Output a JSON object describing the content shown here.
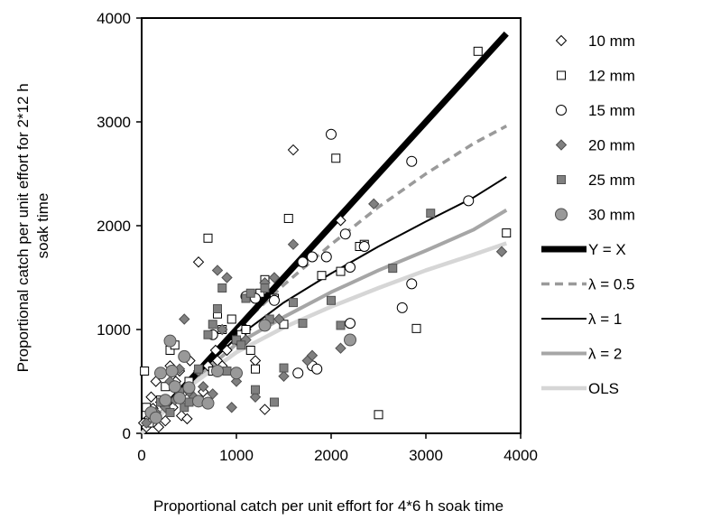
{
  "chart_data": {
    "type": "scatter",
    "xlabel": "Proportional catch per unit effort for 4*6 h soak time",
    "ylabel_lines": [
      "Proportional catch per unit effort for 2*12 h",
      "soak time"
    ],
    "xlim": [
      0,
      4000
    ],
    "ylim": [
      0,
      4000
    ],
    "xticks": [
      "0",
      "1000",
      "2000",
      "3000",
      "4000"
    ],
    "yticks": [
      "0",
      "1000",
      "2000",
      "3000",
      "4000"
    ],
    "grid": false,
    "legend_position": "right",
    "series": [
      {
        "name": "10 mm",
        "marker": "diamond-open",
        "color": "#000000",
        "points": [
          [
            20,
            100
          ],
          [
            50,
            60
          ],
          [
            80,
            150
          ],
          [
            100,
            350
          ],
          [
            120,
            240
          ],
          [
            150,
            500
          ],
          [
            180,
            60
          ],
          [
            200,
            300
          ],
          [
            250,
            120
          ],
          [
            300,
            650
          ],
          [
            330,
            250
          ],
          [
            360,
            500
          ],
          [
            400,
            600
          ],
          [
            420,
            170
          ],
          [
            450,
            400
          ],
          [
            480,
            140
          ],
          [
            510,
            700
          ],
          [
            600,
            1650
          ],
          [
            650,
            400
          ],
          [
            700,
            650
          ],
          [
            780,
            800
          ],
          [
            800,
            700
          ],
          [
            850,
            650
          ],
          [
            900,
            800
          ],
          [
            1000,
            900
          ],
          [
            1050,
            1000
          ],
          [
            1100,
            1000
          ],
          [
            1200,
            700
          ],
          [
            1300,
            230
          ],
          [
            1600,
            2730
          ],
          [
            1700,
            1650
          ],
          [
            2100,
            2050
          ]
        ]
      },
      {
        "name": "12 mm",
        "marker": "square-open",
        "color": "#000000",
        "points": [
          [
            30,
            600
          ],
          [
            50,
            250
          ],
          [
            80,
            100
          ],
          [
            150,
            150
          ],
          [
            200,
            320
          ],
          [
            250,
            450
          ],
          [
            300,
            800
          ],
          [
            350,
            850
          ],
          [
            400,
            400
          ],
          [
            500,
            500
          ],
          [
            700,
            1880
          ],
          [
            750,
            600
          ],
          [
            800,
            1150
          ],
          [
            850,
            1000
          ],
          [
            950,
            1100
          ],
          [
            1050,
            950
          ],
          [
            1100,
            1000
          ],
          [
            1150,
            800
          ],
          [
            1200,
            620
          ],
          [
            1250,
            1350
          ],
          [
            1300,
            1480
          ],
          [
            1400,
            1300
          ],
          [
            1500,
            1050
          ],
          [
            1550,
            2070
          ],
          [
            1700,
            1650
          ],
          [
            1900,
            1520
          ],
          [
            2050,
            2650
          ],
          [
            2100,
            1560
          ],
          [
            2300,
            1800
          ],
          [
            2350,
            1820
          ],
          [
            2500,
            180
          ],
          [
            2900,
            1010
          ],
          [
            3550,
            3680
          ],
          [
            3850,
            1930
          ]
        ]
      },
      {
        "name": "15 mm",
        "marker": "circle-open",
        "color": "#000000",
        "points": [
          [
            750,
            950
          ],
          [
            1100,
            1320
          ],
          [
            1200,
            1300
          ],
          [
            1400,
            1280
          ],
          [
            1650,
            580
          ],
          [
            1700,
            1650
          ],
          [
            1800,
            650
          ],
          [
            1800,
            1700
          ],
          [
            1850,
            620
          ],
          [
            1950,
            1700
          ],
          [
            2000,
            2880
          ],
          [
            2150,
            1920
          ],
          [
            2200,
            1060
          ],
          [
            2200,
            1600
          ],
          [
            2350,
            1800
          ],
          [
            2750,
            1210
          ],
          [
            2850,
            1440
          ],
          [
            2850,
            2620
          ],
          [
            3450,
            2240
          ]
        ]
      },
      {
        "name": "20 mm",
        "marker": "diamond-filled",
        "color": "#808080",
        "points": [
          [
            50,
            100
          ],
          [
            150,
            200
          ],
          [
            250,
            250
          ],
          [
            300,
            500
          ],
          [
            350,
            320
          ],
          [
            400,
            620
          ],
          [
            450,
            1100
          ],
          [
            500,
            400
          ],
          [
            550,
            350
          ],
          [
            600,
            600
          ],
          [
            650,
            450
          ],
          [
            700,
            300
          ],
          [
            750,
            380
          ],
          [
            800,
            1570
          ],
          [
            850,
            1000
          ],
          [
            900,
            1500
          ],
          [
            950,
            250
          ],
          [
            1000,
            500
          ],
          [
            1100,
            900
          ],
          [
            1200,
            350
          ],
          [
            1300,
            1450
          ],
          [
            1400,
            1500
          ],
          [
            1450,
            1100
          ],
          [
            1500,
            550
          ],
          [
            1600,
            1820
          ],
          [
            1750,
            700
          ],
          [
            1800,
            750
          ],
          [
            2100,
            820
          ],
          [
            2450,
            2210
          ],
          [
            3800,
            1750
          ]
        ]
      },
      {
        "name": "25 mm",
        "marker": "square-filled",
        "color": "#808080",
        "points": [
          [
            100,
            200
          ],
          [
            200,
            300
          ],
          [
            300,
            200
          ],
          [
            400,
            400
          ],
          [
            450,
            250
          ],
          [
            500,
            300
          ],
          [
            600,
            620
          ],
          [
            700,
            950
          ],
          [
            750,
            1050
          ],
          [
            800,
            1200
          ],
          [
            850,
            1400
          ],
          [
            900,
            600
          ],
          [
            1000,
            900
          ],
          [
            1050,
            850
          ],
          [
            1100,
            1300
          ],
          [
            1150,
            1350
          ],
          [
            1200,
            420
          ],
          [
            1300,
            1400
          ],
          [
            1350,
            1100
          ],
          [
            1400,
            300
          ],
          [
            1500,
            630
          ],
          [
            1600,
            1260
          ],
          [
            1700,
            1060
          ],
          [
            2000,
            1280
          ],
          [
            2100,
            1040
          ],
          [
            2650,
            1590
          ],
          [
            3050,
            2120
          ]
        ]
      },
      {
        "name": "30 mm",
        "marker": "circle-filled",
        "color": "#999999",
        "points": [
          [
            100,
            200
          ],
          [
            150,
            150
          ],
          [
            200,
            580
          ],
          [
            250,
            320
          ],
          [
            300,
            890
          ],
          [
            320,
            600
          ],
          [
            350,
            450
          ],
          [
            400,
            340
          ],
          [
            450,
            740
          ],
          [
            500,
            440
          ],
          [
            600,
            310
          ],
          [
            700,
            290
          ],
          [
            800,
            600
          ],
          [
            1000,
            580
          ],
          [
            1300,
            1040
          ],
          [
            2200,
            900
          ]
        ]
      }
    ],
    "lines": [
      {
        "name": "Y = X",
        "color": "#000000",
        "width": 7,
        "dash": "",
        "x": [
          300,
          3850
        ],
        "y": [
          300,
          3850
        ]
      },
      {
        "name": "λ = 0.5",
        "color": "#9a9a9a",
        "width": 3.5,
        "dash": "9,6",
        "x": [
          0,
          500,
          1000,
          1500,
          2000,
          2500,
          3000,
          3500,
          3850
        ],
        "y": [
          0,
          500,
          1000,
          1430,
          1820,
          2180,
          2500,
          2790,
          2960
        ]
      },
      {
        "name": "λ = 1",
        "color": "#000000",
        "width": 2,
        "dash": "",
        "x": [
          0,
          500,
          1000,
          1500,
          2000,
          2500,
          3000,
          3500,
          3850
        ],
        "y": [
          0,
          490,
          920,
          1260,
          1540,
          1800,
          2040,
          2270,
          2470
        ]
      },
      {
        "name": "λ = 2",
        "color": "#a6a6a6",
        "width": 4,
        "dash": "",
        "x": [
          0,
          500,
          1000,
          1500,
          2000,
          2500,
          3000,
          3500,
          3850
        ],
        "y": [
          0,
          470,
          860,
          1120,
          1360,
          1570,
          1760,
          1960,
          2150
        ]
      },
      {
        "name": "OLS",
        "color": "#d6d6d6",
        "width": 4.5,
        "dash": "",
        "x": [
          0,
          500,
          1000,
          1500,
          2000,
          2500,
          3000,
          3500,
          3850
        ],
        "y": [
          0,
          450,
          780,
          1020,
          1220,
          1400,
          1570,
          1720,
          1830
        ]
      }
    ]
  }
}
